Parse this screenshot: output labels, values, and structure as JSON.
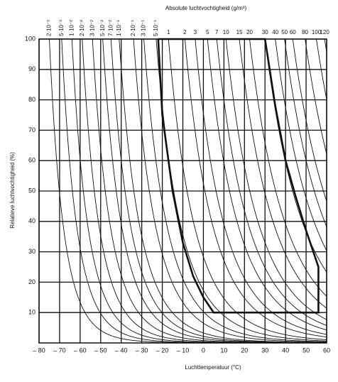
{
  "chart_data": {
    "type": "line",
    "title": "Absolute luchtvochtigheid (g/m³)",
    "x_label": "Luchttemperatuur (°C)",
    "y_label": "Relatieve luchtvochtigheid (%)",
    "xlim": [
      -80,
      60
    ],
    "ylim": [
      0,
      100
    ],
    "xticks": [
      {
        "value": -80,
        "label": "– 80"
      },
      {
        "value": -70,
        "label": "– 70"
      },
      {
        "value": -60,
        "label": "– 60"
      },
      {
        "value": -50,
        "label": "– 50"
      },
      {
        "value": -40,
        "label": "– 40"
      },
      {
        "value": -30,
        "label": "– 30"
      },
      {
        "value": -20,
        "label": "– 20"
      },
      {
        "value": -10,
        "label": "– 10"
      },
      0,
      10,
      20,
      30,
      40,
      50,
      60
    ],
    "yticks": [
      10,
      20,
      30,
      40,
      50,
      60,
      70,
      80,
      90,
      100
    ],
    "grid": true,
    "color": "#111111",
    "curves": [
      {
        "name": "2·10⁻³",
        "x": -75
      },
      {
        "name": "5·10⁻³",
        "x": -69
      },
      {
        "name": "1·10⁻²",
        "x": -64
      },
      {
        "name": "2·10⁻²",
        "x": -59
      },
      {
        "name": "3·10⁻²",
        "x": -54
      },
      {
        "name": "5·10⁻²",
        "x": -49
      },
      {
        "name": "7·10⁻²",
        "x": -45
      },
      {
        "name": "1·10⁻¹",
        "x": -41
      },
      {
        "name": "2·10⁻¹",
        "x": -34
      },
      {
        "name": "3·10⁻¹",
        "x": -29
      },
      {
        "name": "5·10⁻¹",
        "x": -23
      },
      {
        "name": "1",
        "x": -17
      },
      {
        "name": "2",
        "x": -9
      },
      {
        "name": "3",
        "x": -4
      },
      {
        "name": "5",
        "x": 2
      },
      {
        "name": "7",
        "x": 6.5
      },
      {
        "name": "10",
        "x": 11
      },
      {
        "name": "15",
        "x": 17.5
      },
      {
        "name": "20",
        "x": 22.5
      },
      {
        "name": "30",
        "x": 30
      },
      {
        "name": "40",
        "x": 35
      },
      {
        "name": "50",
        "x": 39.5
      },
      {
        "name": "60",
        "x": 43.5
      },
      {
        "name": "80",
        "x": 49.5
      },
      {
        "name": "100",
        "x": 55
      },
      {
        "name": "120",
        "x": 59
      }
    ],
    "boundary": {
      "x": [
        -22,
        30,
        35,
        40,
        45,
        50,
        55,
        56,
        56,
        5,
        0,
        -5,
        -10,
        -15,
        -20,
        -22
      ],
      "values": [
        100,
        100,
        78,
        60,
        48,
        37,
        27,
        25,
        10,
        10,
        15,
        22,
        33,
        50,
        75,
        100
      ]
    }
  }
}
